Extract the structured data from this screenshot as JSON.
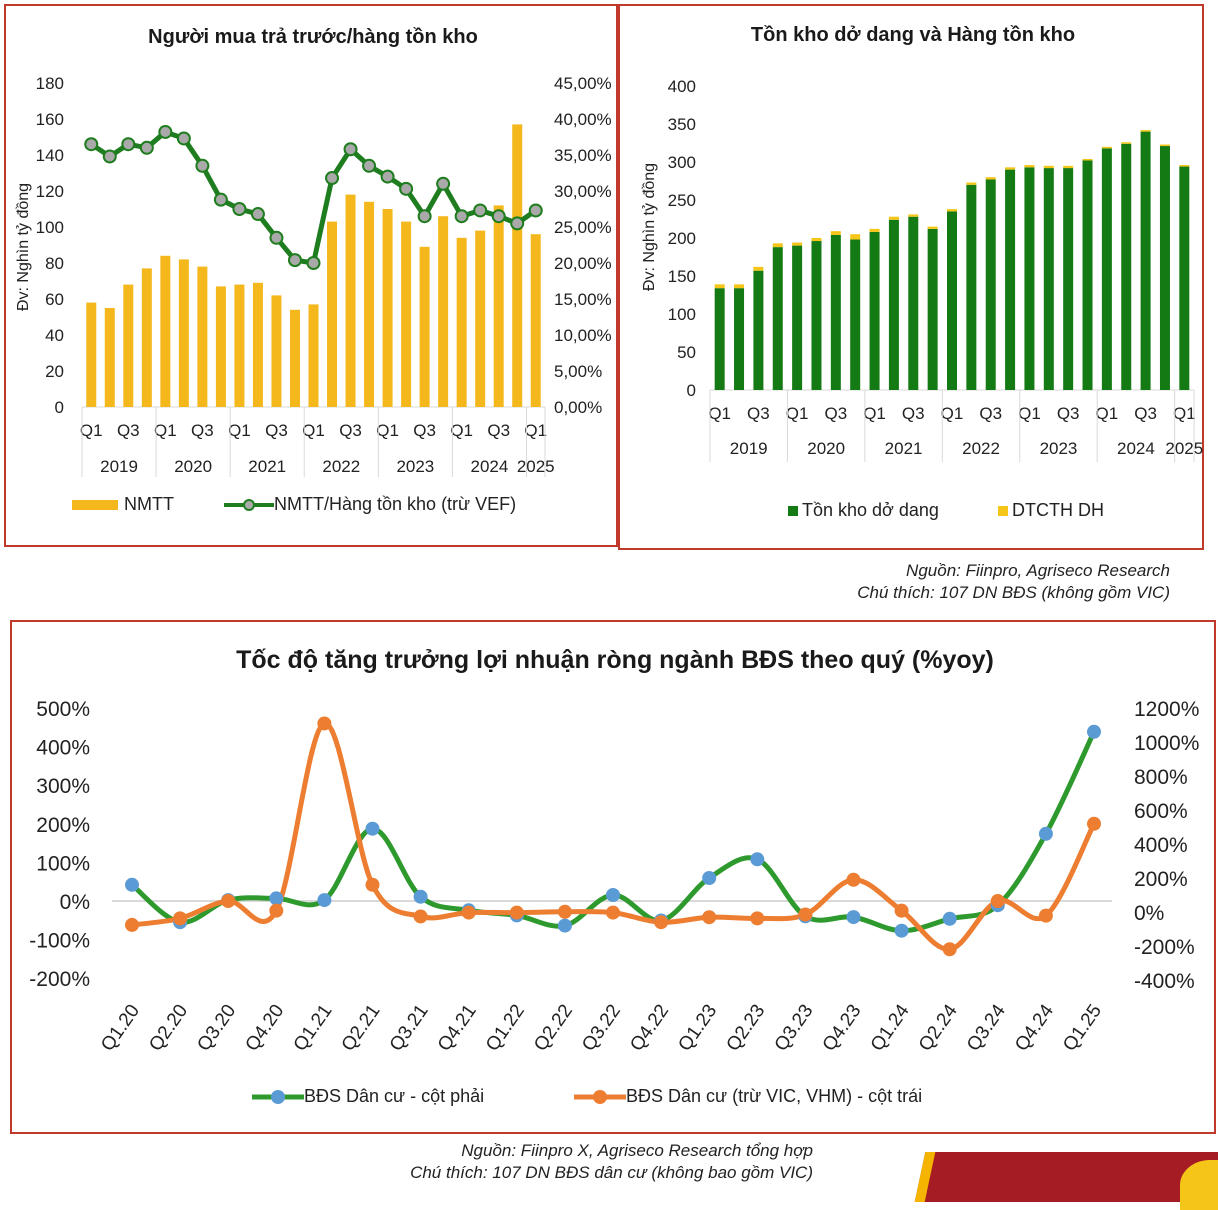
{
  "chart_data": [
    {
      "type": "bar",
      "title": "Người mua trả trước/hàng tồn kho",
      "ylabel": "Đv: Nghìn tỷ đồng",
      "ylim": [
        0,
        180
      ],
      "yticks": [
        "0",
        "20",
        "40",
        "60",
        "80",
        "100",
        "120",
        "140",
        "160",
        "180"
      ],
      "y2lim": [
        0,
        45
      ],
      "y2ticks": [
        "0,00%",
        "5,00%",
        "10,00%",
        "15,00%",
        "20,00%",
        "25,00%",
        "30,00%",
        "35,00%",
        "40,00%",
        "45,00%"
      ],
      "quarter_labels": [
        "Q1",
        "",
        "Q3",
        "",
        "Q1",
        "",
        "Q3",
        "",
        "Q1",
        "",
        "Q3",
        "",
        "Q1",
        "",
        "Q3",
        "",
        "Q1",
        "",
        "Q3",
        "",
        "Q1",
        "",
        "Q3",
        "",
        "Q1"
      ],
      "year_labels": [
        "2019",
        "2020",
        "2021",
        "2022",
        "2023",
        "2024",
        "2025"
      ],
      "categories": [
        "Q1.19",
        "Q2.19",
        "Q3.19",
        "Q4.19",
        "Q1.20",
        "Q2.20",
        "Q3.20",
        "Q4.20",
        "Q1.21",
        "Q2.21",
        "Q3.21",
        "Q4.21",
        "Q1.22",
        "Q2.22",
        "Q3.22",
        "Q4.22",
        "Q1.23",
        "Q2.23",
        "Q3.23",
        "Q4.23",
        "Q1.24",
        "Q2.24",
        "Q3.24",
        "Q4.24",
        "Q1.25"
      ],
      "series": [
        {
          "name": "NMTT",
          "kind": "bar",
          "axis": "left",
          "color": "#f5b81c",
          "values": [
            58,
            55,
            68,
            77,
            84,
            82,
            78,
            67,
            68,
            69,
            62,
            54,
            57,
            103,
            118,
            114,
            110,
            103,
            89,
            106,
            94,
            98,
            112,
            157,
            96
          ]
        },
        {
          "name": "NMTT/Hàng tồn kho (trừ VEF)",
          "kind": "line",
          "axis": "right",
          "color": "#1e7d1e",
          "values": [
            36.5,
            34.8,
            36.5,
            36.0,
            38.2,
            37.3,
            33.5,
            28.8,
            27.5,
            26.8,
            23.5,
            20.4,
            20.0,
            31.8,
            35.8,
            33.5,
            32.0,
            30.3,
            26.5,
            31.0,
            26.5,
            27.3,
            26.5,
            25.5,
            27.3
          ]
        }
      ],
      "legend_position": "bottom"
    },
    {
      "type": "bar",
      "stacked": true,
      "title": "Tồn kho dở dang và Hàng tồn kho",
      "ylabel": "Đv: Nghìn tỷ đồng",
      "ylim": [
        0,
        400
      ],
      "yticks": [
        "0",
        "50",
        "100",
        "150",
        "200",
        "250",
        "300",
        "350",
        "400"
      ],
      "quarter_labels": [
        "Q1",
        "",
        "Q3",
        "",
        "Q1",
        "",
        "Q3",
        "",
        "Q1",
        "",
        "Q3",
        "",
        "Q1",
        "",
        "Q3",
        "",
        "Q1",
        "",
        "Q3",
        "",
        "Q1",
        "",
        "Q3",
        "",
        "Q1"
      ],
      "year_labels": [
        "2019",
        "2020",
        "2021",
        "2022",
        "2023",
        "2024",
        "2025"
      ],
      "categories": [
        "Q1.19",
        "Q2.19",
        "Q3.19",
        "Q4.19",
        "Q1.20",
        "Q2.20",
        "Q3.20",
        "Q4.20",
        "Q1.21",
        "Q2.21",
        "Q3.21",
        "Q4.21",
        "Q1.22",
        "Q2.22",
        "Q3.22",
        "Q4.22",
        "Q1.23",
        "Q2.23",
        "Q3.23",
        "Q4.23",
        "Q1.24",
        "Q2.24",
        "Q3.24",
        "Q4.24",
        "Q1.25"
      ],
      "series": [
        {
          "name": "Tồn kho dở dang",
          "color": "#147a14",
          "values": [
            134,
            134,
            157,
            188,
            190,
            196,
            204,
            198,
            208,
            224,
            228,
            212,
            235,
            270,
            277,
            290,
            293,
            292,
            292,
            302,
            318,
            324,
            340,
            321,
            294
          ]
        },
        {
          "name": "DTCTH DH",
          "color": "#f5c518",
          "values": [
            5,
            5,
            5,
            5,
            4,
            4,
            5,
            7,
            4,
            4,
            3,
            3,
            3,
            3,
            3,
            3,
            3,
            3,
            3,
            2,
            2,
            2,
            2,
            2,
            2
          ]
        }
      ],
      "legend_position": "bottom"
    },
    {
      "type": "line",
      "title": "Tốc độ tăng trưởng lợi nhuận ròng ngành BĐS theo quý (%yoy)",
      "categories": [
        "Q1.20",
        "Q2.20",
        "Q3.20",
        "Q4.20",
        "Q1.21",
        "Q2.21",
        "Q3.21",
        "Q4.21",
        "Q1.22",
        "Q2.22",
        "Q3.22",
        "Q4.22",
        "Q1.23",
        "Q2.23",
        "Q3.23",
        "Q4.23",
        "Q1.24",
        "Q2.24",
        "Q3.24",
        "Q4.24",
        "Q1.25"
      ],
      "ylim": [
        -200,
        500
      ],
      "yticks": [
        "-200%",
        "-100%",
        "0%",
        "100%",
        "200%",
        "300%",
        "400%",
        "500%"
      ],
      "y2lim": [
        -400,
        1200
      ],
      "y2ticks": [
        "-400%",
        "-200%",
        "0%",
        "200%",
        "400%",
        "600%",
        "800%",
        "1000%",
        "1200%"
      ],
      "series": [
        {
          "name": "BĐS Dân cư - cột phải",
          "axis": "right",
          "color": "#2e9a2e",
          "marker_color": "#5b9bd5",
          "values": [
            160,
            -60,
            70,
            80,
            70,
            490,
            90,
            10,
            -20,
            -80,
            100,
            -50,
            200,
            310,
            -25,
            -30,
            -110,
            -40,
            40,
            460,
            1060
          ]
        },
        {
          "name": "BĐS Dân cư (trừ VIC, VHM) - cột trái",
          "axis": "left",
          "color": "#ed7d31",
          "marker_color": "#ed7d31",
          "values": [
            -62,
            -45,
            0,
            -25,
            460,
            42,
            -40,
            -30,
            -30,
            -28,
            -30,
            -55,
            -42,
            -45,
            -35,
            55,
            -25,
            -125,
            0,
            -38,
            200
          ]
        }
      ],
      "legend_position": "bottom"
    }
  ],
  "notes": {
    "top_source": "Nguồn: Fiinpro, Agriseco Research",
    "top_caption": "Chú thích: 107 DN BĐS (không gồm VIC)",
    "bottom_source": "Nguồn: Fiinpro X, Agriseco Research tổng hợp",
    "bottom_caption": "Chú thích: 107 DN BĐS dân cư (không bao gồm VIC)"
  }
}
